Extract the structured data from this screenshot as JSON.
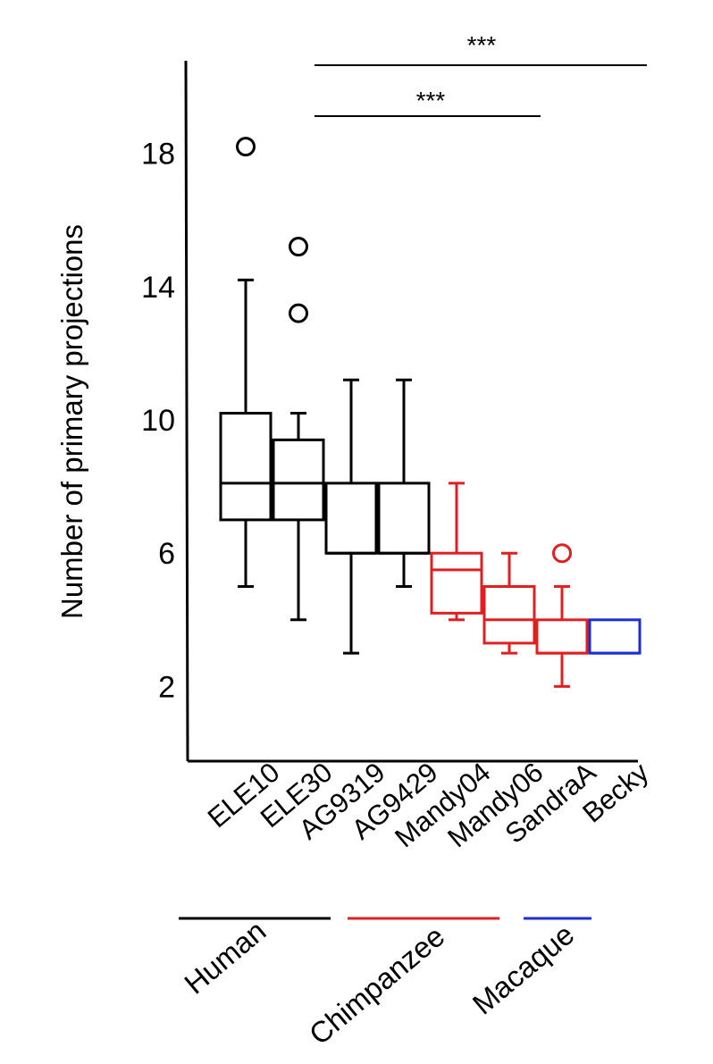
{
  "chart_data": {
    "type": "box",
    "title": "",
    "xlabel": "",
    "ylabel": "Number of primary projections",
    "ylim": [
      0,
      21
    ],
    "yticks": [
      2,
      6,
      10,
      14,
      18
    ],
    "categories": [
      "ELE10",
      "ELE30",
      "AG9319",
      "AG9429",
      "Mandy04",
      "Mandy06",
      "SandraA",
      "Becky"
    ],
    "boxes": [
      {
        "name": "ELE10",
        "group": "Human",
        "color": "#000000",
        "whisker_low": 5,
        "q1": 7,
        "median": 8.1,
        "q3": 10.2,
        "whisker_high": 14.2,
        "outliers": [
          18.2
        ]
      },
      {
        "name": "ELE30",
        "group": "Human",
        "color": "#000000",
        "whisker_low": 4,
        "q1": 7,
        "median": 8.1,
        "q3": 9.4,
        "whisker_high": 10.2,
        "outliers": [
          15.2,
          13.2
        ]
      },
      {
        "name": "AG9319",
        "group": "Human",
        "color": "#000000",
        "whisker_low": 3,
        "q1": 6,
        "median": 6,
        "q3": 8.1,
        "whisker_high": 11.2,
        "outliers": []
      },
      {
        "name": "AG9429",
        "group": "Human",
        "color": "#000000",
        "whisker_low": 5,
        "q1": 6,
        "median": 6,
        "q3": 8.1,
        "whisker_high": 11.2,
        "outliers": []
      },
      {
        "name": "Mandy04",
        "group": "Chimpanzee",
        "color": "#e02020",
        "whisker_low": 4,
        "q1": 4.2,
        "median": 5.5,
        "q3": 6,
        "whisker_high": 8.1,
        "outliers": []
      },
      {
        "name": "Mandy06",
        "group": "Chimpanzee",
        "color": "#e02020",
        "whisker_low": 3,
        "q1": 3.3,
        "median": 4,
        "q3": 5,
        "whisker_high": 6,
        "outliers": []
      },
      {
        "name": "SandraA",
        "group": "Chimpanzee",
        "color": "#e02020",
        "whisker_low": 2,
        "q1": 3,
        "median": 3,
        "q3": 4,
        "whisker_high": 5,
        "outliers": [
          6
        ]
      },
      {
        "name": "Becky",
        "group": "Macaque",
        "color": "#1a2fd6",
        "whisker_low": 3,
        "q1": 3,
        "median": 3,
        "q3": 4,
        "whisker_high": 4,
        "outliers": []
      }
    ],
    "groups": [
      {
        "name": "Human",
        "color": "#000000",
        "members": [
          "ELE10",
          "ELE30",
          "AG9319",
          "AG9429"
        ]
      },
      {
        "name": "Chimpanzee",
        "color": "#e02020",
        "members": [
          "Mandy04",
          "Mandy06",
          "SandraA"
        ]
      },
      {
        "name": "Macaque",
        "color": "#1a2fd6",
        "members": [
          "Becky"
        ]
      }
    ],
    "significance": [
      {
        "label": "***",
        "from": "AG9319",
        "to": "SandraA"
      },
      {
        "label": "***",
        "from": "AG9319",
        "to": "Becky"
      }
    ]
  }
}
